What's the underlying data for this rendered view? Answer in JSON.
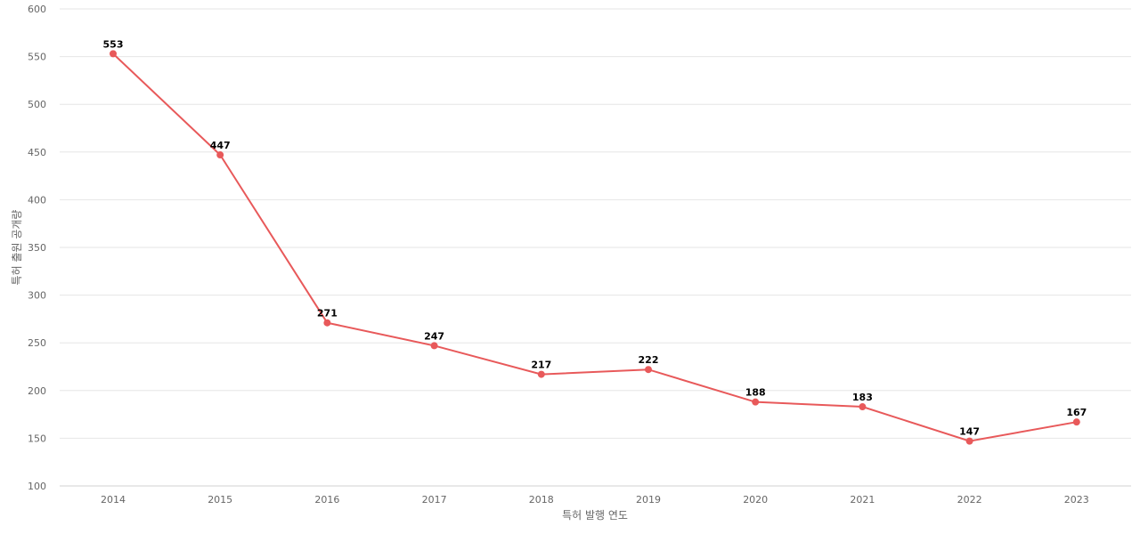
{
  "chart_data": {
    "type": "line",
    "title": "",
    "xlabel": "특허 발행 연도",
    "ylabel": "특허 출원 공개량",
    "categories": [
      "2014",
      "2015",
      "2016",
      "2017",
      "2018",
      "2019",
      "2020",
      "2021",
      "2022",
      "2023"
    ],
    "values": [
      553,
      447,
      271,
      247,
      217,
      222,
      188,
      183,
      147,
      167
    ],
    "ylim": [
      100,
      600
    ],
    "yticks": [
      100,
      150,
      200,
      250,
      300,
      350,
      400,
      450,
      500,
      550,
      600
    ],
    "grid": true,
    "legend": "none",
    "color": "#e8595a"
  }
}
